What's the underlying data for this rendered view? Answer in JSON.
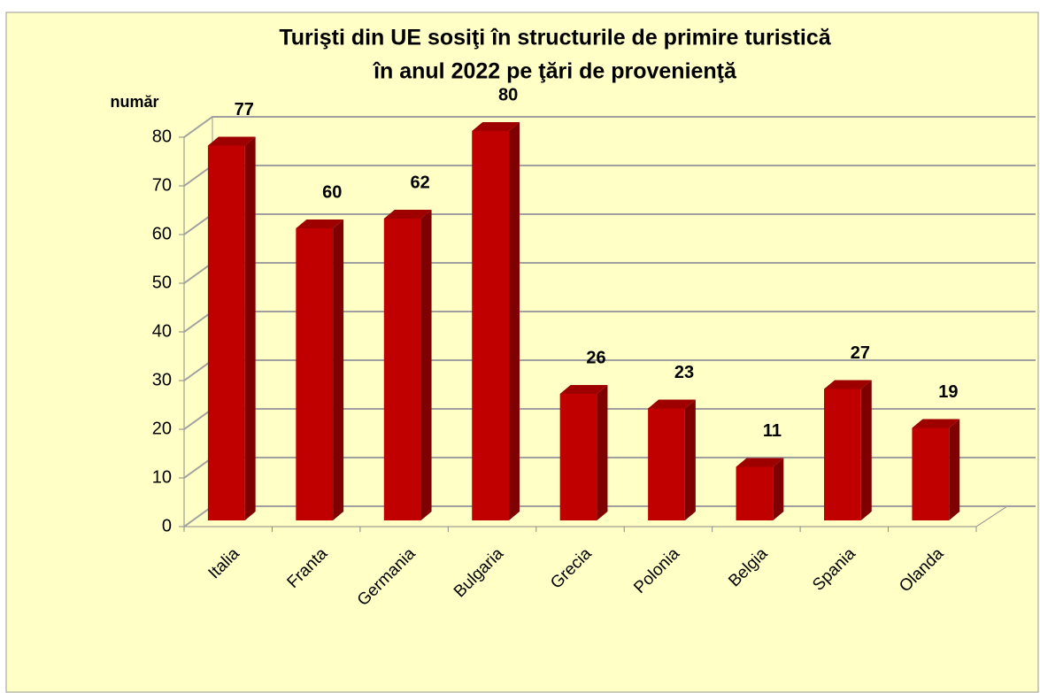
{
  "chart_data": {
    "type": "bar3d",
    "title": [
      "Turişti din UE sosiţi în structurile de primire turistică",
      "în anul 2022 pe ţări de provenienţă"
    ],
    "y_label": "număr",
    "categories": [
      "Italia",
      "Franta",
      "Germania",
      "Bulgaria",
      "Grecia",
      "Polonia",
      "Belgia",
      "Spania",
      "Olanda"
    ],
    "values": [
      77,
      60,
      62,
      80,
      26,
      23,
      11,
      27,
      19
    ],
    "color": "#c00000",
    "ylim": [
      0,
      80
    ],
    "yticks": [
      0,
      10,
      20,
      30,
      40,
      50,
      60,
      70,
      80
    ],
    "grid": true
  }
}
